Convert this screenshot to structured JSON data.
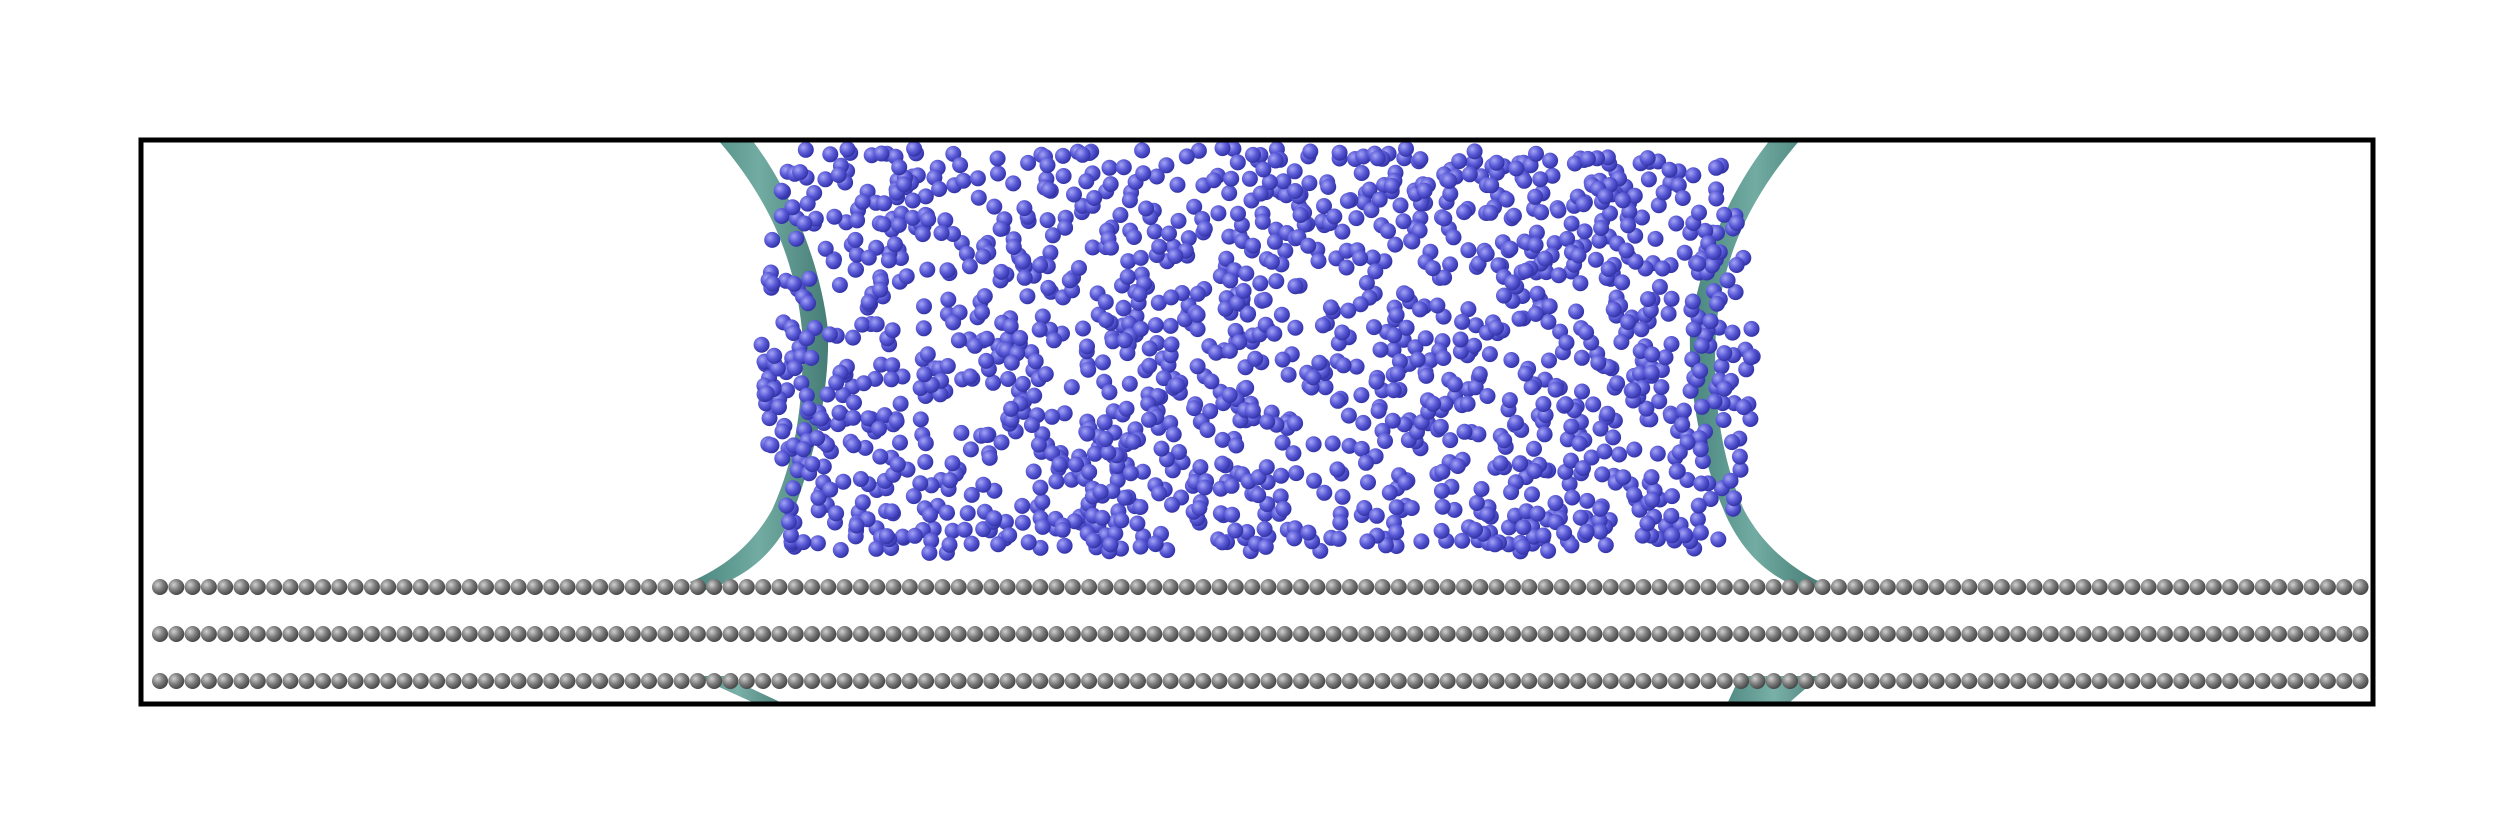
{
  "scene": {
    "description_kind": "molecular-dynamics-snapshot",
    "liquid_droplet": {
      "atom_color": "#5b5bdc",
      "atom_highlight": "#9a9af0"
    },
    "substrate": {
      "atom_color": "#7a7a7a",
      "atom_highlight": "#c8c8c8",
      "layers": 3
    },
    "interface_surface": {
      "color": "#4f8f86"
    },
    "simulation_box": {
      "border_color": "#000000"
    }
  }
}
